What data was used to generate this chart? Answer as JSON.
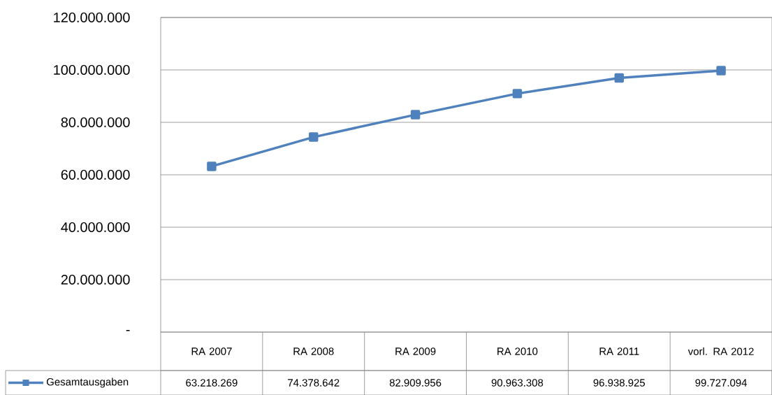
{
  "chart_data": {
    "type": "line",
    "categories": [
      "RA 2007",
      "RA 2008",
      "RA 2009",
      "RA 2010",
      "RA 2011",
      "vorl. RA 2012"
    ],
    "series": [
      {
        "name": "Gesamtausgaben",
        "color": "#4f81bd",
        "values": [
          63218269,
          74378642,
          82909956,
          90963308,
          96938925,
          99727094
        ],
        "value_labels": [
          "63.218.269",
          "74.378.642",
          "82.909.956",
          "90.963.308",
          "96.938.925",
          "99.727.094"
        ]
      }
    ],
    "ylim": [
      0,
      120000000
    ],
    "yticks": [
      {
        "value": 0,
        "label": "-"
      },
      {
        "value": 20000000,
        "label": "20.000.000"
      },
      {
        "value": 40000000,
        "label": "40.000.000"
      },
      {
        "value": 60000000,
        "label": "60.000.000"
      },
      {
        "value": 80000000,
        "label": "80.000.000"
      },
      {
        "value": 100000000,
        "label": "100.000.000"
      },
      {
        "value": 120000000,
        "label": "120.000.000"
      }
    ],
    "grid": "y",
    "legend": "bottom",
    "marker": "square",
    "line_style": "solid"
  }
}
